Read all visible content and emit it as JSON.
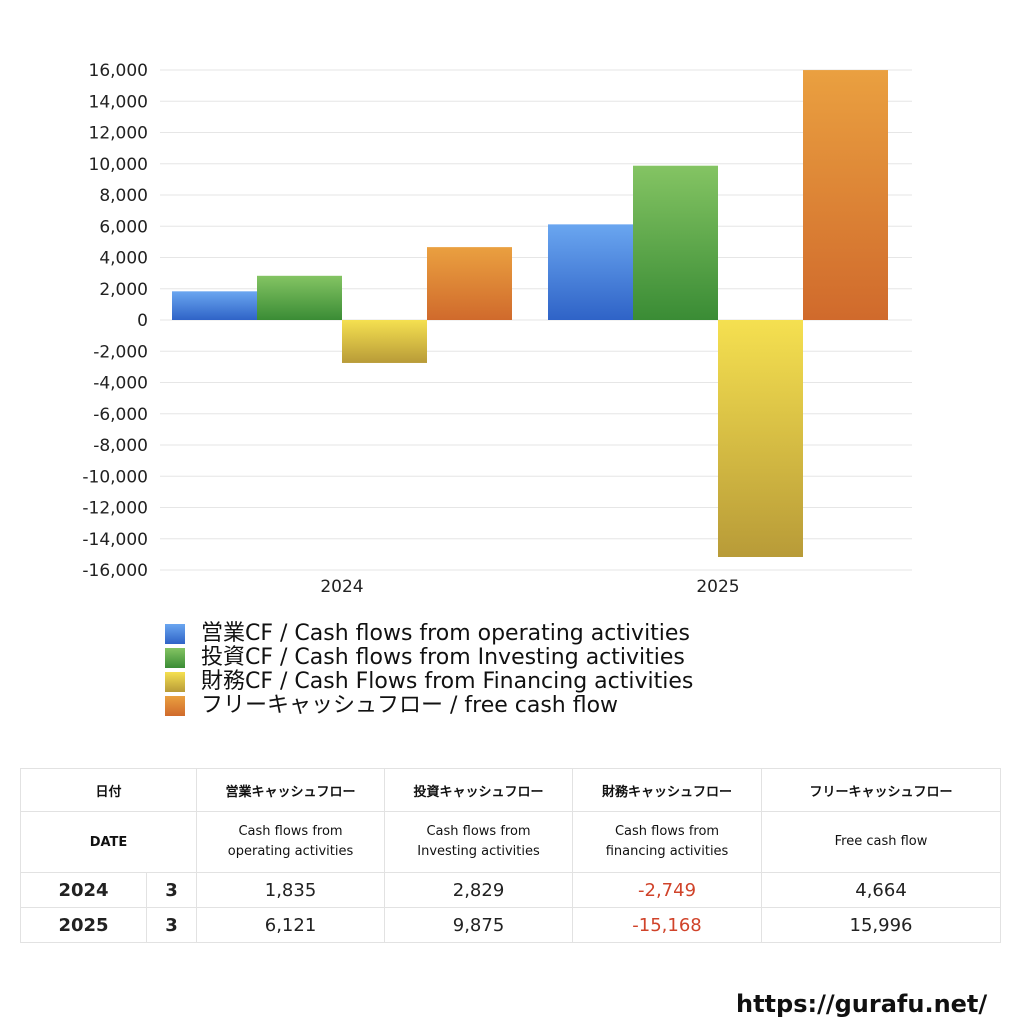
{
  "chart_data": {
    "type": "bar",
    "categories": [
      "2024",
      "2025"
    ],
    "series": [
      {
        "name": "営業CF / Cash flows from operating activities",
        "values": [
          1835,
          6121
        ],
        "color_top": "#6aa6f0",
        "color_bottom": "#2f63c7"
      },
      {
        "name": "投資CF / Cash flows from Investing activities",
        "values": [
          2829,
          9875
        ],
        "color_top": "#84c463",
        "color_bottom": "#3a8c35"
      },
      {
        "name": "財務CF / Cash Flows from Financing activities",
        "values": [
          -2749,
          -15168
        ],
        "color_top": "#f5e050",
        "color_bottom": "#b89b38"
      },
      {
        "name": "フリーキャッシュフロー / free cash flow",
        "values": [
          4664,
          15996
        ],
        "color_top": "#eaa040",
        "color_bottom": "#d06a2c"
      }
    ],
    "ylim": [
      -16000,
      16000
    ],
    "yticks": [
      16000,
      14000,
      12000,
      10000,
      8000,
      6000,
      4000,
      2000,
      0,
      -2000,
      -4000,
      -6000,
      -8000,
      -10000,
      -12000,
      -14000,
      -16000
    ],
    "ytick_labels": [
      "16,000",
      "14,000",
      "12,000",
      "10,000",
      "8,000",
      "6,000",
      "4,000",
      "2,000",
      "0",
      "-2,000",
      "-4,000",
      "-6,000",
      "-8,000",
      "-10,000",
      "-12,000",
      "-14,000",
      "-16,000"
    ],
    "grid": true,
    "legend": "bottom"
  },
  "table": {
    "headers_ja": [
      "日付",
      "営業キャッシュフロー",
      "投資キャッシュフロー",
      "財務キャッシュフロー",
      "フリーキャッシュフロー"
    ],
    "headers_en": {
      "date": "DATE",
      "operating": [
        "Cash flows from",
        "operating activities"
      ],
      "investing": [
        "Cash flows from",
        "Investing activities"
      ],
      "financing": [
        "Cash flows from",
        "financing activities"
      ],
      "free": "Free cash flow"
    },
    "rows": [
      {
        "year": "2024",
        "month": "3",
        "operating": "1,835",
        "investing": "2,829",
        "financing": "-2,749",
        "free": "4,664"
      },
      {
        "year": "2025",
        "month": "3",
        "operating": "6,121",
        "investing": "9,875",
        "financing": "-15,168",
        "free": "15,996"
      }
    ]
  },
  "footer": {
    "url": "https://gurafu.net/"
  }
}
